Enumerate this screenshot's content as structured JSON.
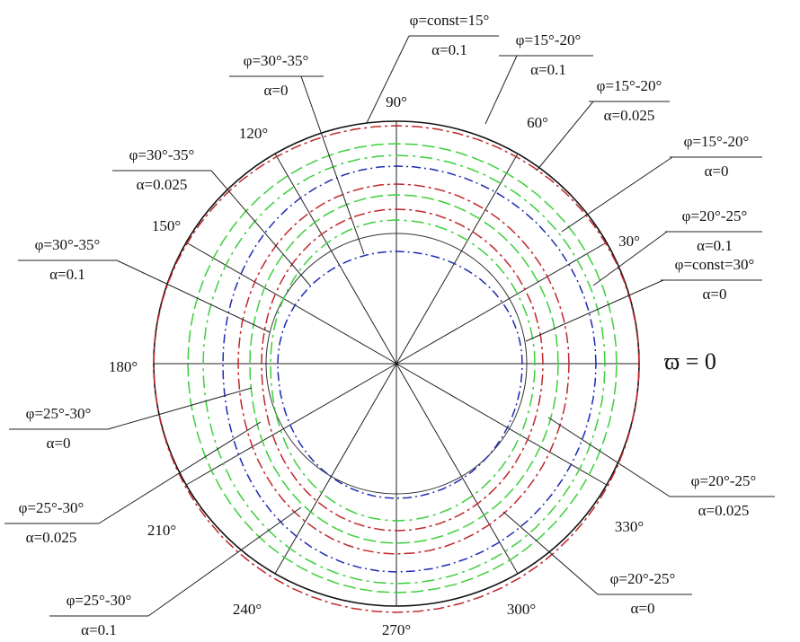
{
  "diagram": {
    "angle_labels": [
      "90°",
      "60°",
      "30°",
      "180°",
      "150°",
      "120°",
      "210°",
      "240°",
      "270°",
      "300°",
      "330°"
    ],
    "axis_label": "ϖ = 0",
    "callouts": [
      {
        "top": "φ=const=15°",
        "bottom": "α=0.1"
      },
      {
        "top": "φ=30°-35°",
        "bottom": "α=0"
      },
      {
        "top": "φ=15°-20°",
        "bottom": "α=0.1"
      },
      {
        "top": "φ=15°-20°",
        "bottom": "α=0.025"
      },
      {
        "top": "φ=15°-20°",
        "bottom": "α=0"
      },
      {
        "top": "φ=20°-25°",
        "bottom": "α=0.1"
      },
      {
        "top": "φ=const=30°",
        "bottom": "α=0"
      },
      {
        "top": "φ=30°-35°",
        "bottom": "α=0.025"
      },
      {
        "top": "φ=30°-35°",
        "bottom": "α=0.1"
      },
      {
        "top": "φ=25°-30°",
        "bottom": "α=0"
      },
      {
        "top": "φ=25°-30°",
        "bottom": "α=0.025"
      },
      {
        "top": "φ=25°-30°",
        "bottom": "α=0.1"
      },
      {
        "top": "φ=20°-25°",
        "bottom": "α=0.025"
      },
      {
        "top": "φ=20°-25°",
        "bottom": "α=0"
      }
    ]
  }
}
